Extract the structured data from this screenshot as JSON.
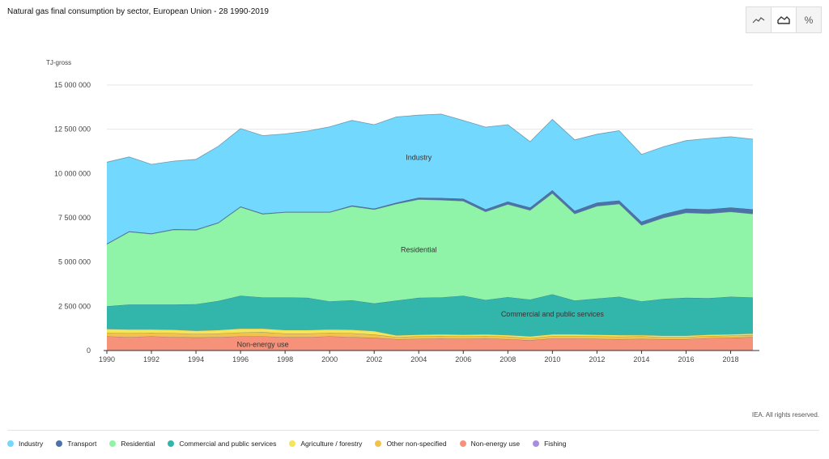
{
  "title": "Natural gas final consumption by sector, European Union - 28 1990-2019",
  "toolbar": [
    {
      "icon": "line-chart-icon",
      "label": ""
    },
    {
      "icon": "area-chart-icon",
      "label": ""
    },
    {
      "icon": "percent-icon",
      "label": "%"
    }
  ],
  "unit_label": "TJ-gross",
  "credit": "IEA. All rights reserved.",
  "colors": {
    "Industry": "#73d8fd",
    "Transport": "#4c73a9",
    "Residential": "#90f4a8",
    "Commercial and public services": "#32b6ac",
    "Agriculture / forestry": "#f4e55a",
    "Other non-specified": "#f2c14e",
    "Non-energy use": "#f6927a",
    "Fishing": "#a98cde"
  },
  "legend": [
    {
      "label": "Industry",
      "color": "#73d8fd"
    },
    {
      "label": "Transport",
      "color": "#4c73a9"
    },
    {
      "label": "Residential",
      "color": "#90f4a8"
    },
    {
      "label": "Commercial and public services",
      "color": "#32b6ac"
    },
    {
      "label": "Agriculture / forestry",
      "color": "#f4e55a"
    },
    {
      "label": "Other non-specified",
      "color": "#f2c14e"
    },
    {
      "label": "Non-energy use",
      "color": "#f6927a"
    },
    {
      "label": "Fishing",
      "color": "#a98cde"
    }
  ],
  "chart_data": {
    "type": "area",
    "stacked": true,
    "title": "Natural gas final consumption by sector, European Union - 28 1990-2019",
    "ylabel": "TJ-gross",
    "ylim": [
      0,
      15000000
    ],
    "yticks": [
      0,
      2500000,
      5000000,
      7500000,
      10000000,
      12500000,
      15000000
    ],
    "ytick_labels": [
      "0",
      "2 500 000",
      "5 000 000",
      "7 500 000",
      "10 000 000",
      "12 500 000",
      "15 000 000"
    ],
    "xlim": [
      1990,
      2019
    ],
    "xticks": [
      1990,
      1992,
      1994,
      1996,
      1998,
      2000,
      2002,
      2004,
      2006,
      2008,
      2010,
      2012,
      2014,
      2016,
      2018
    ],
    "grid": true,
    "legend_position": "bottom",
    "x": [
      1990,
      1991,
      1992,
      1993,
      1994,
      1995,
      1996,
      1997,
      1998,
      1999,
      2000,
      2001,
      2002,
      2003,
      2004,
      2005,
      2006,
      2007,
      2008,
      2009,
      2010,
      2011,
      2012,
      2013,
      2014,
      2015,
      2016,
      2017,
      2018,
      2019
    ],
    "series": [
      {
        "name": "Non-energy use",
        "values": [
          800000,
          760000,
          800000,
          760000,
          740000,
          760000,
          800000,
          800000,
          760000,
          760000,
          800000,
          760000,
          720000,
          640000,
          660000,
          680000,
          660000,
          680000,
          640000,
          580000,
          680000,
          680000,
          660000,
          640000,
          660000,
          640000,
          640000,
          700000,
          720000,
          760000
        ]
      },
      {
        "name": "Fishing",
        "values": [
          0,
          0,
          0,
          0,
          0,
          0,
          0,
          0,
          0,
          0,
          0,
          0,
          0,
          0,
          0,
          0,
          0,
          0,
          0,
          0,
          0,
          0,
          0,
          0,
          0,
          0,
          0,
          0,
          0,
          0
        ]
      },
      {
        "name": "Other non-specified",
        "values": [
          200000,
          220000,
          200000,
          220000,
          200000,
          200000,
          220000,
          240000,
          200000,
          200000,
          200000,
          220000,
          180000,
          120000,
          140000,
          140000,
          140000,
          140000,
          140000,
          120000,
          140000,
          140000,
          140000,
          140000,
          140000,
          120000,
          120000,
          120000,
          120000,
          120000
        ]
      },
      {
        "name": "Agriculture / forestry",
        "values": [
          220000,
          220000,
          200000,
          200000,
          180000,
          200000,
          220000,
          200000,
          200000,
          200000,
          200000,
          200000,
          200000,
          100000,
          100000,
          100000,
          100000,
          100000,
          100000,
          100000,
          100000,
          100000,
          100000,
          100000,
          80000,
          80000,
          80000,
          80000,
          80000,
          80000
        ]
      },
      {
        "name": "Commercial and public services",
        "values": [
          1280000,
          1400000,
          1400000,
          1420000,
          1500000,
          1640000,
          1860000,
          1760000,
          1840000,
          1820000,
          1580000,
          1660000,
          1560000,
          1960000,
          2080000,
          2080000,
          2200000,
          1940000,
          2140000,
          2080000,
          2260000,
          1900000,
          2040000,
          2160000,
          1900000,
          2080000,
          2140000,
          2060000,
          2120000,
          2040000
        ]
      },
      {
        "name": "Residential",
        "values": [
          3500000,
          4100000,
          3980000,
          4220000,
          4180000,
          4400000,
          5000000,
          4700000,
          4800000,
          4820000,
          5020000,
          5300000,
          5300000,
          5460000,
          5560000,
          5500000,
          5340000,
          4980000,
          5240000,
          5040000,
          5700000,
          4900000,
          5220000,
          5240000,
          4300000,
          4580000,
          4800000,
          4780000,
          4800000,
          4720000
        ]
      },
      {
        "name": "Transport",
        "values": [
          40000,
          40000,
          40000,
          40000,
          40000,
          40000,
          40000,
          40000,
          40000,
          40000,
          40000,
          60000,
          60000,
          80000,
          100000,
          120000,
          140000,
          140000,
          160000,
          160000,
          180000,
          180000,
          200000,
          200000,
          200000,
          220000,
          240000,
          240000,
          240000,
          260000
        ]
      },
      {
        "name": "Industry",
        "values": [
          4600000,
          4200000,
          3900000,
          3840000,
          3960000,
          4300000,
          4400000,
          4400000,
          4400000,
          4560000,
          4800000,
          4800000,
          4740000,
          4840000,
          4660000,
          4740000,
          4420000,
          4640000,
          4340000,
          3720000,
          4000000,
          4000000,
          3860000,
          3940000,
          3800000,
          3800000,
          3840000,
          4000000,
          4000000,
          3960000
        ]
      }
    ],
    "annotations": [
      {
        "series": "Industry",
        "text": "Industry",
        "x": 2004,
        "y": 10900000
      },
      {
        "series": "Residential",
        "text": "Residential",
        "x": 2004,
        "y": 5700000
      },
      {
        "series": "Commercial and public services",
        "text": "Commercial and public services",
        "x": 2010,
        "y": 2050000
      },
      {
        "series": "Non-energy use",
        "text": "Non-energy use",
        "x": 1997,
        "y": 350000
      }
    ]
  }
}
